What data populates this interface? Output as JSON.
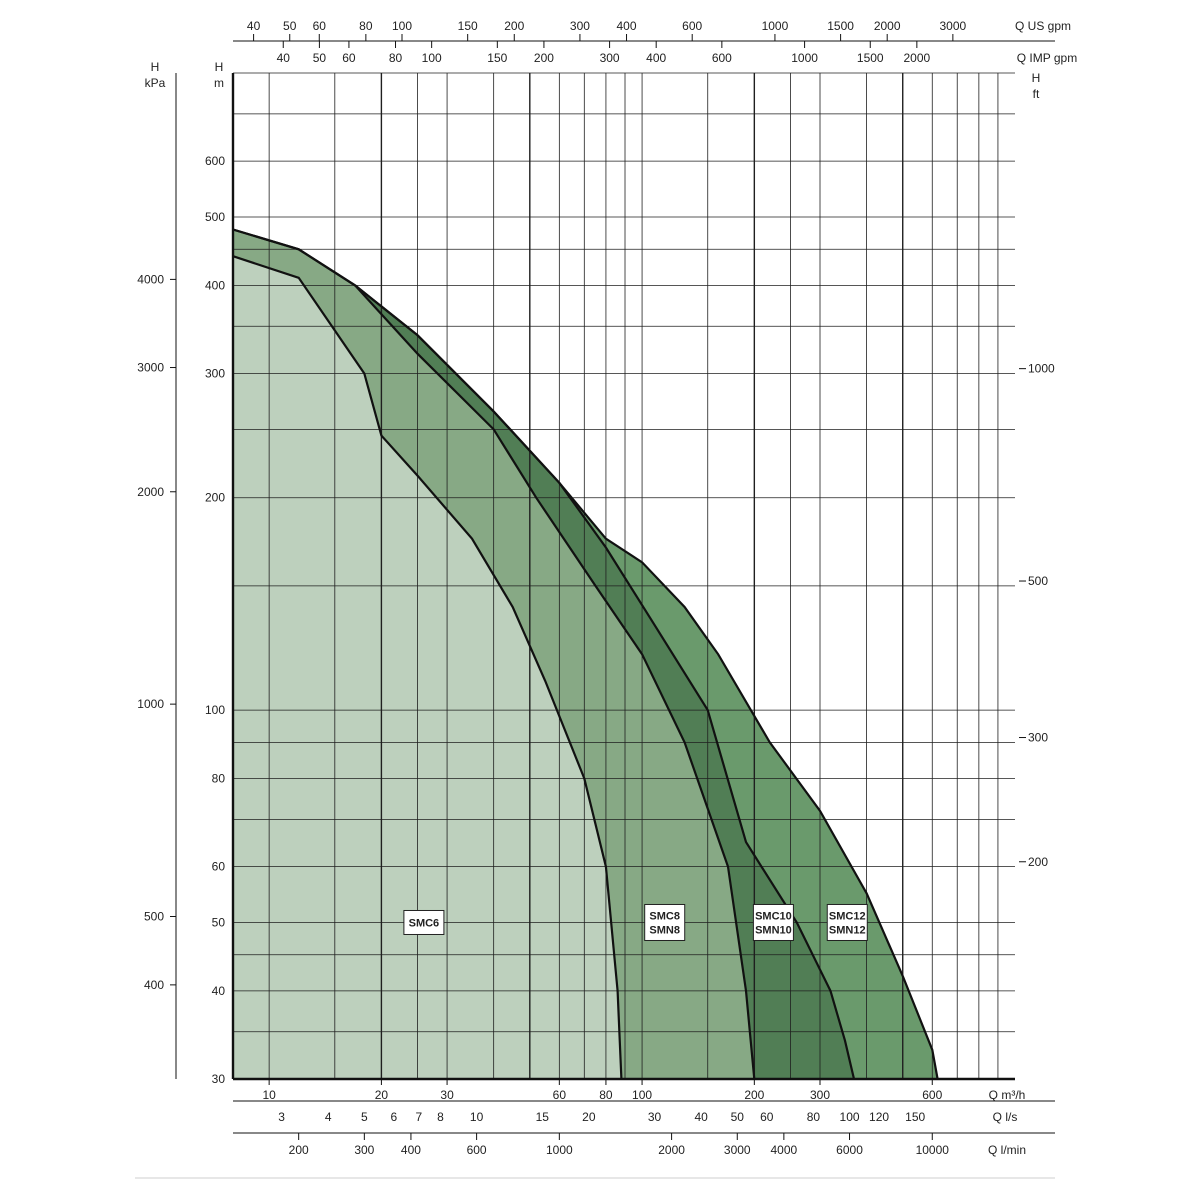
{
  "chart_data": {
    "type": "area",
    "title": "",
    "x_scale": "log",
    "y_scale": "log",
    "xlim_m3h": [
      8,
      1000
    ],
    "ylim_m": [
      30,
      800
    ],
    "axes": {
      "top_us_gpm": {
        "unit": "Q US gpm",
        "ticks": [
          "40",
          "50",
          "60",
          "80",
          "100",
          "150",
          "200",
          "300",
          "400",
          "600",
          "1000",
          "1500",
          "2000",
          "3000"
        ],
        "values": [
          40,
          50,
          60,
          80,
          100,
          150,
          200,
          300,
          400,
          600,
          1000,
          1500,
          2000,
          3000
        ]
      },
      "top_imp_gpm": {
        "unit": "Q IMP gpm",
        "ticks": [
          "40",
          "50",
          "60",
          "80",
          "100",
          "150",
          "200",
          "300",
          "400",
          "600",
          "1000",
          "1500",
          "2000"
        ],
        "values": [
          40,
          50,
          60,
          80,
          100,
          150,
          200,
          300,
          400,
          600,
          1000,
          1500,
          2000
        ]
      },
      "bottom_m3h": {
        "unit": "Q m³/h",
        "ticks": [
          "10",
          "20",
          "30",
          "60",
          "80",
          "100",
          "200",
          "300",
          "600"
        ],
        "values": [
          10,
          20,
          30,
          60,
          80,
          100,
          200,
          300,
          600
        ]
      },
      "bottom_ls": {
        "unit": "Q l/s",
        "ticks": [
          "3",
          "4",
          "5",
          "6",
          "7",
          "8",
          "10",
          "15",
          "20",
          "30",
          "40",
          "50",
          "60",
          "80",
          "100",
          "150",
          "120"
        ],
        "values": [
          3,
          4,
          5,
          6,
          7,
          8,
          10,
          15,
          20,
          30,
          40,
          50,
          60,
          80,
          100,
          150,
          120
        ]
      },
      "bottom_lmin": {
        "unit": "Q l/min",
        "ticks": [
          "200",
          "300",
          "400",
          "600",
          "1000",
          "2000",
          "3000",
          "4000",
          "6000",
          "10000"
        ],
        "values": [
          200,
          300,
          400,
          600,
          1000,
          2000,
          3000,
          4000,
          6000,
          10000
        ]
      },
      "left_m": {
        "unit_line1": "H",
        "unit_line2": "m",
        "ticks": [
          "30",
          "40",
          "50",
          "60",
          "80",
          "100",
          "200",
          "300",
          "400",
          "500",
          "600"
        ],
        "values": [
          30,
          40,
          50,
          60,
          80,
          100,
          200,
          300,
          400,
          500,
          600
        ]
      },
      "left_kpa": {
        "unit_line1": "H",
        "unit_line2": "kPa",
        "ticks": [
          "400",
          "500",
          "1000",
          "2000",
          "3000",
          "4000"
        ],
        "values": [
          400,
          500,
          1000,
          2000,
          3000,
          4000
        ]
      },
      "right_ft": {
        "unit_line1": "H",
        "unit_line2": "ft",
        "ticks": [
          "1000",
          "500",
          "300",
          "200"
        ],
        "values": [
          1000,
          500,
          300,
          200
        ]
      }
    },
    "series": [
      {
        "label_lines": [
          "SMC12",
          "SMN12"
        ],
        "label_at": [
          355,
          50
        ],
        "color": "#6a9a6c",
        "boundary": [
          [
            8,
            480
          ],
          [
            12,
            450
          ],
          [
            17,
            400
          ],
          [
            25,
            340
          ],
          [
            40,
            265
          ],
          [
            60,
            210
          ],
          [
            80,
            175
          ],
          [
            100,
            162
          ],
          [
            130,
            140
          ],
          [
            160,
            120
          ],
          [
            220,
            90
          ],
          [
            300,
            72
          ],
          [
            400,
            55
          ],
          [
            500,
            42
          ],
          [
            600,
            33
          ],
          [
            620,
            30
          ]
        ]
      },
      {
        "label_lines": [
          "SMC10",
          "SMN10"
        ],
        "label_at": [
          225,
          50
        ],
        "color": "#517e55",
        "boundary": [
          [
            17,
            400
          ],
          [
            25,
            340
          ],
          [
            40,
            265
          ],
          [
            60,
            210
          ],
          [
            80,
            170
          ],
          [
            110,
            130
          ],
          [
            150,
            100
          ],
          [
            190,
            65
          ],
          [
            260,
            50
          ],
          [
            320,
            40
          ],
          [
            350,
            34
          ],
          [
            370,
            30
          ]
        ]
      },
      {
        "label_lines": [
          "SMC8",
          "SMN8"
        ],
        "label_at": [
          115,
          50
        ],
        "color": "#87a985",
        "boundary": [
          [
            8,
            480
          ],
          [
            12,
            450
          ],
          [
            17,
            400
          ],
          [
            25,
            320
          ],
          [
            40,
            250
          ],
          [
            52,
            200
          ],
          [
            75,
            150
          ],
          [
            100,
            120
          ],
          [
            130,
            90
          ],
          [
            170,
            60
          ],
          [
            190,
            40
          ],
          [
            200,
            30
          ]
        ]
      },
      {
        "label_lines": [
          "SMC6"
        ],
        "label_at": [
          26,
          50
        ],
        "color": "#bdd0bd",
        "boundary": [
          [
            8,
            440
          ],
          [
            12,
            410
          ],
          [
            18,
            300
          ],
          [
            20,
            245
          ],
          [
            25,
            215
          ],
          [
            35,
            175
          ],
          [
            45,
            140
          ],
          [
            55,
            110
          ],
          [
            70,
            80
          ],
          [
            80,
            60
          ],
          [
            86,
            40
          ],
          [
            88,
            30
          ]
        ]
      }
    ]
  }
}
